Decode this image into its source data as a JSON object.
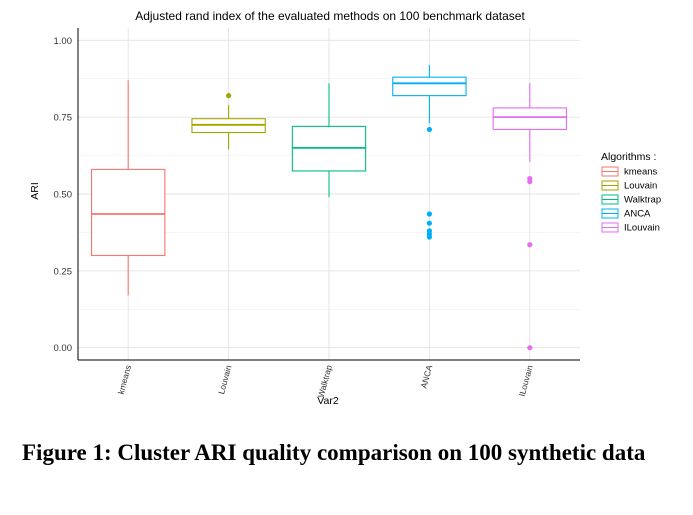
{
  "chart_data": {
    "type": "boxplot",
    "title": "Adjusted rand index of the evaluated methods on 100 benchmark dataset",
    "xlabel": "Var2",
    "ylabel": "ARI",
    "ylim": [
      -0.04,
      1.04
    ],
    "y_ticks": [
      "0.00",
      "0.25",
      "0.50",
      "0.75",
      "1.00"
    ],
    "y_tick_values": [
      0,
      0.25,
      0.5,
      0.75,
      1.0
    ],
    "grid": true,
    "legend_title": "Algorithms :",
    "legend_position": "right",
    "categories": [
      "kmeans",
      "Louvain",
      "Walktrap",
      "ANCA",
      "ILouvain"
    ],
    "series": [
      {
        "name": "kmeans",
        "color": "#F8766D",
        "whisker_low": 0.17,
        "q1": 0.3,
        "median": 0.435,
        "q3": 0.58,
        "whisker_high": 0.87,
        "outliers": []
      },
      {
        "name": "Louvain",
        "color": "#A3A500",
        "whisker_low": 0.645,
        "q1": 0.7,
        "median": 0.725,
        "q3": 0.745,
        "whisker_high": 0.79,
        "outliers": [
          0.82
        ]
      },
      {
        "name": "Walktrap",
        "color": "#00BF7D",
        "whisker_low": 0.49,
        "q1": 0.575,
        "median": 0.65,
        "q3": 0.72,
        "whisker_high": 0.86,
        "outliers": []
      },
      {
        "name": "ANCA",
        "color": "#00B0F6",
        "whisker_low": 0.73,
        "q1": 0.82,
        "median": 0.86,
        "q3": 0.88,
        "whisker_high": 0.92,
        "outliers": [
          0.71,
          0.435,
          0.405,
          0.38,
          0.37,
          0.36
        ]
      },
      {
        "name": "ILouvain",
        "color": "#E76BF3",
        "whisker_low": 0.605,
        "q1": 0.71,
        "median": 0.75,
        "q3": 0.78,
        "whisker_high": 0.86,
        "outliers": [
          0.55,
          0.54,
          0.335,
          0.0
        ]
      }
    ]
  },
  "caption": "Figure 1: Cluster ARI quality comparison on 100 synthetic data"
}
